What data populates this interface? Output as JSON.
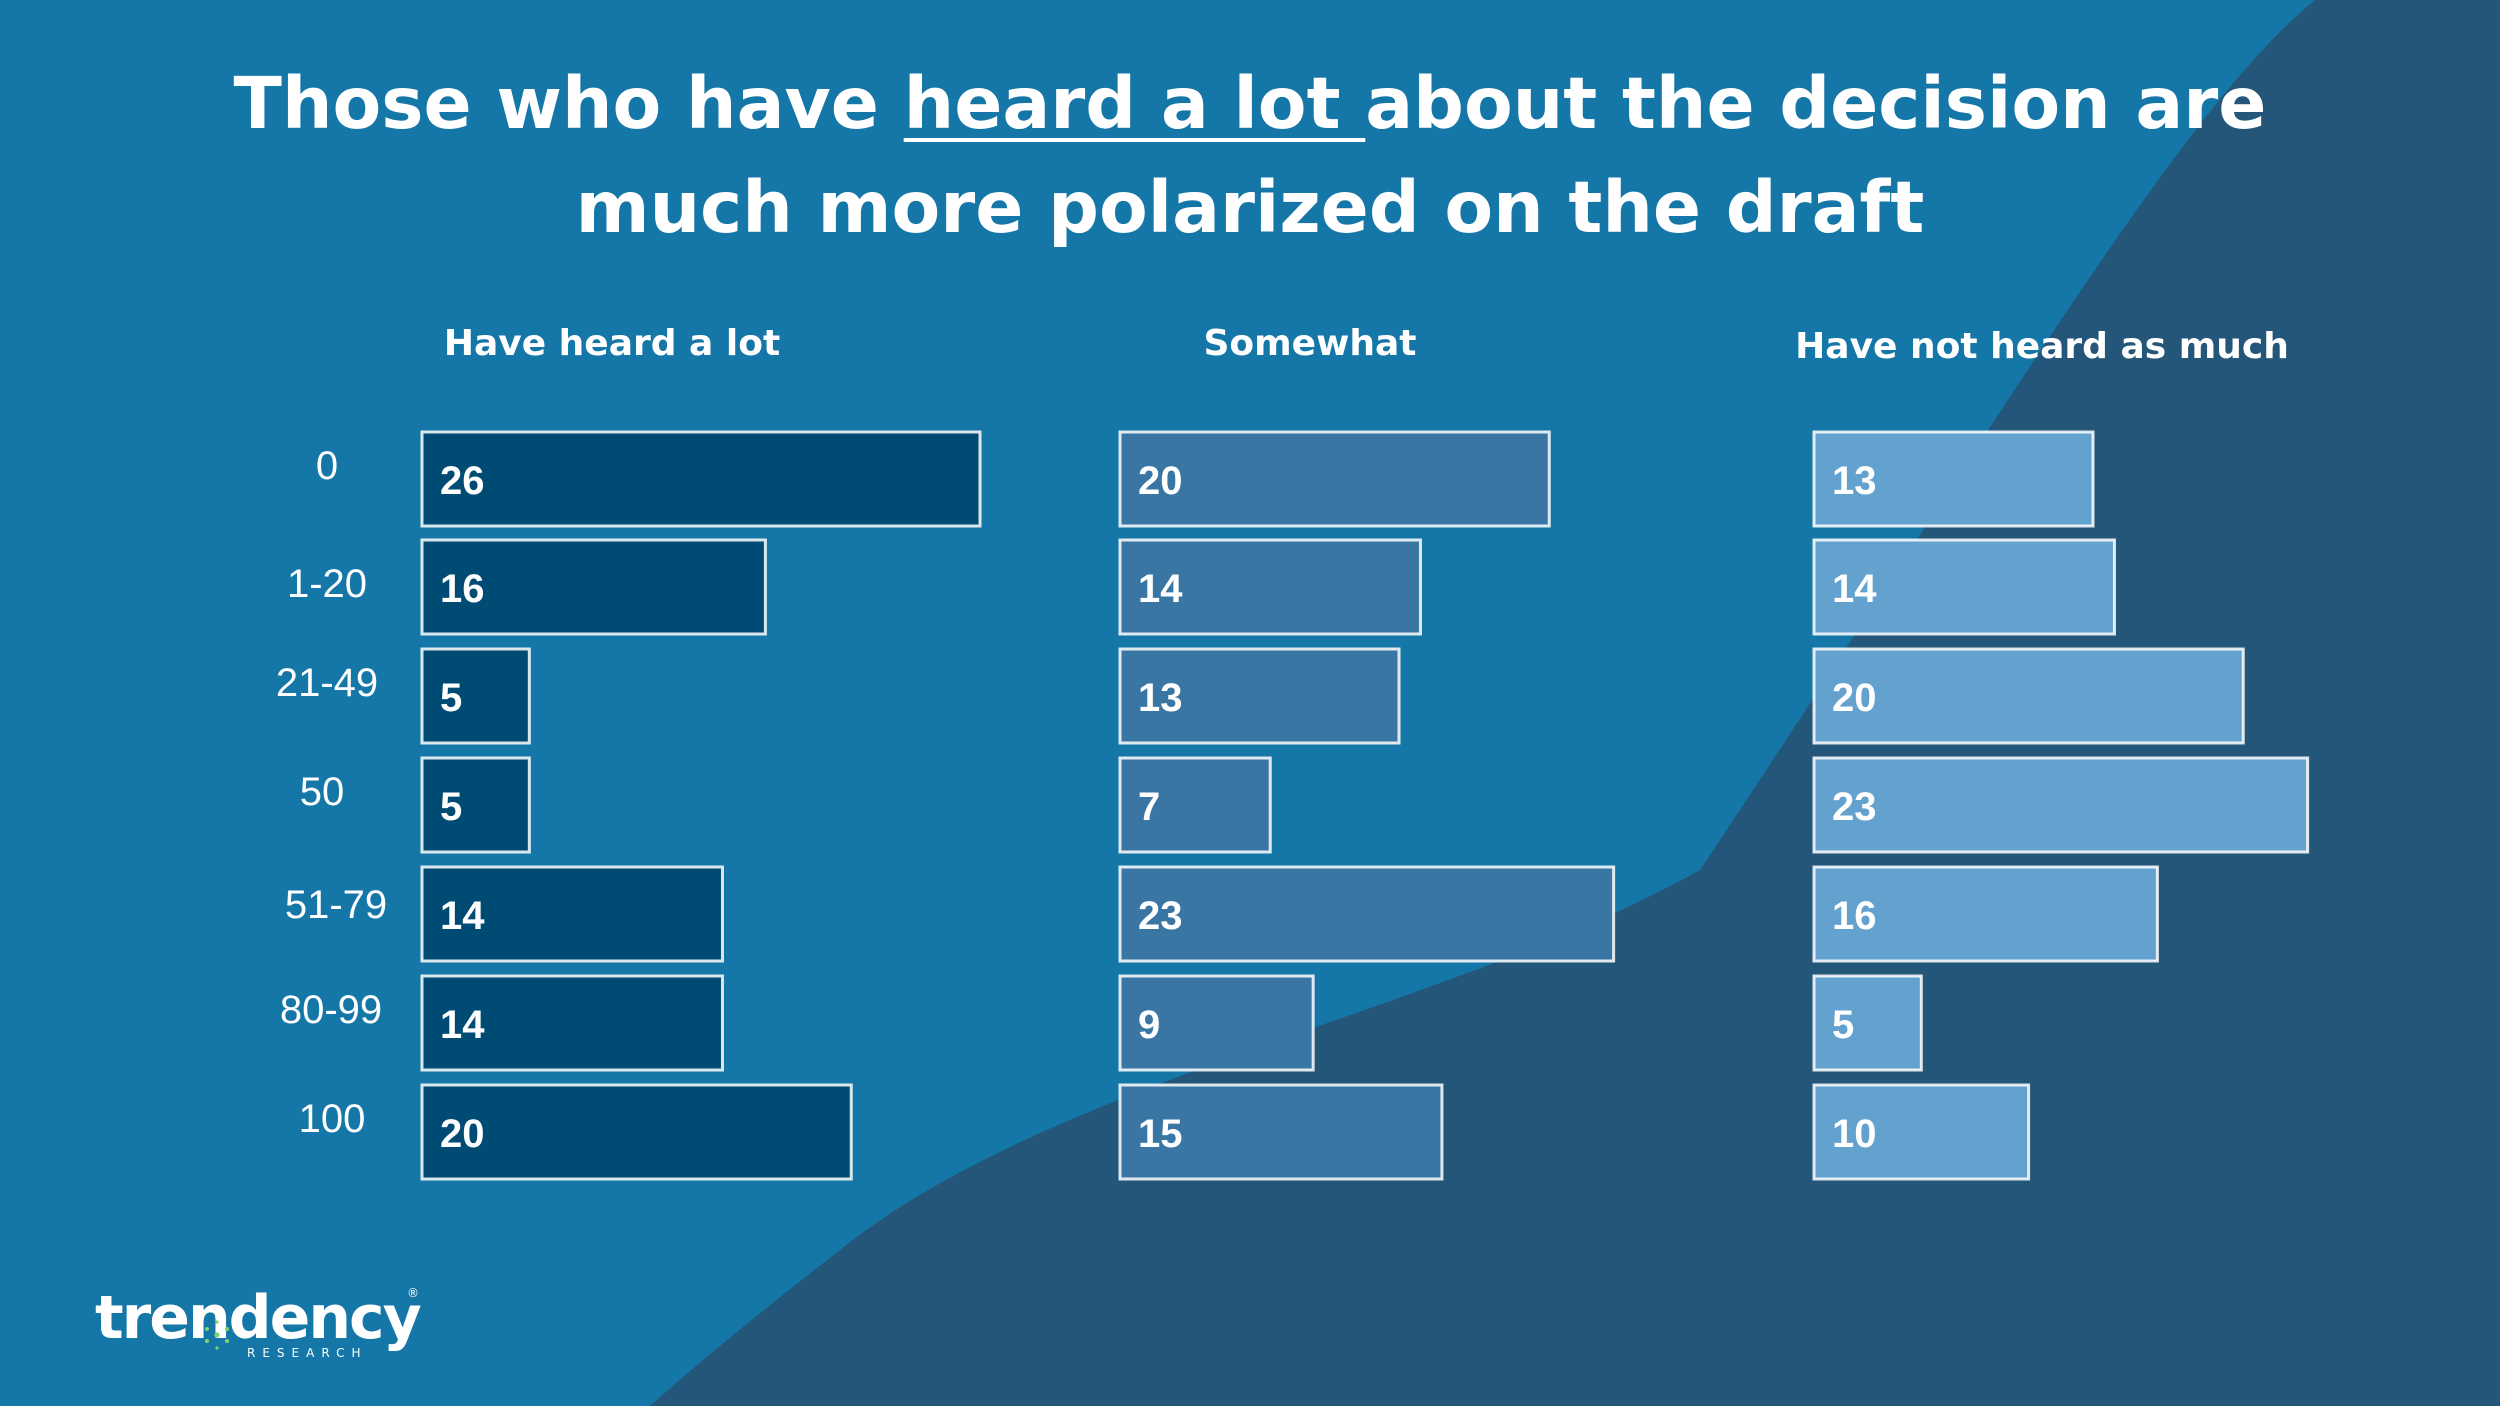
{
  "title": {
    "before": "Those who have ",
    "highlight": "heard a lot ",
    "after": "about the decision are much more polarized on the draft"
  },
  "colors": {
    "background": "#1577a7",
    "wave": "#235678",
    "panel_1_bar": "#004b74",
    "panel_2_bar": "#3a76a4",
    "panel_3_bar": "#63a1ce",
    "bar_outline": "#ffffff",
    "text": "#ffffff"
  },
  "chart_data": {
    "type": "bar",
    "orientation": "horizontal",
    "categories": [
      "0",
      "1-20",
      "21-49",
      "50",
      "51-79",
      "80-99",
      "100"
    ],
    "series": [
      {
        "name": "Have heard a lot",
        "values": [
          26,
          16,
          5,
          5,
          14,
          14,
          20
        ]
      },
      {
        "name": "Somewhat",
        "values": [
          20,
          14,
          13,
          7,
          23,
          9,
          15
        ]
      },
      {
        "name": "Have not heard as much",
        "values": [
          13,
          14,
          20,
          23,
          16,
          5,
          10
        ]
      }
    ],
    "xlim": [
      0,
      26
    ],
    "grid": false,
    "legend": "none",
    "data_labels": true
  },
  "logo": {
    "name": "trendency",
    "subtitle": "RESEARCH",
    "mark": "®"
  }
}
